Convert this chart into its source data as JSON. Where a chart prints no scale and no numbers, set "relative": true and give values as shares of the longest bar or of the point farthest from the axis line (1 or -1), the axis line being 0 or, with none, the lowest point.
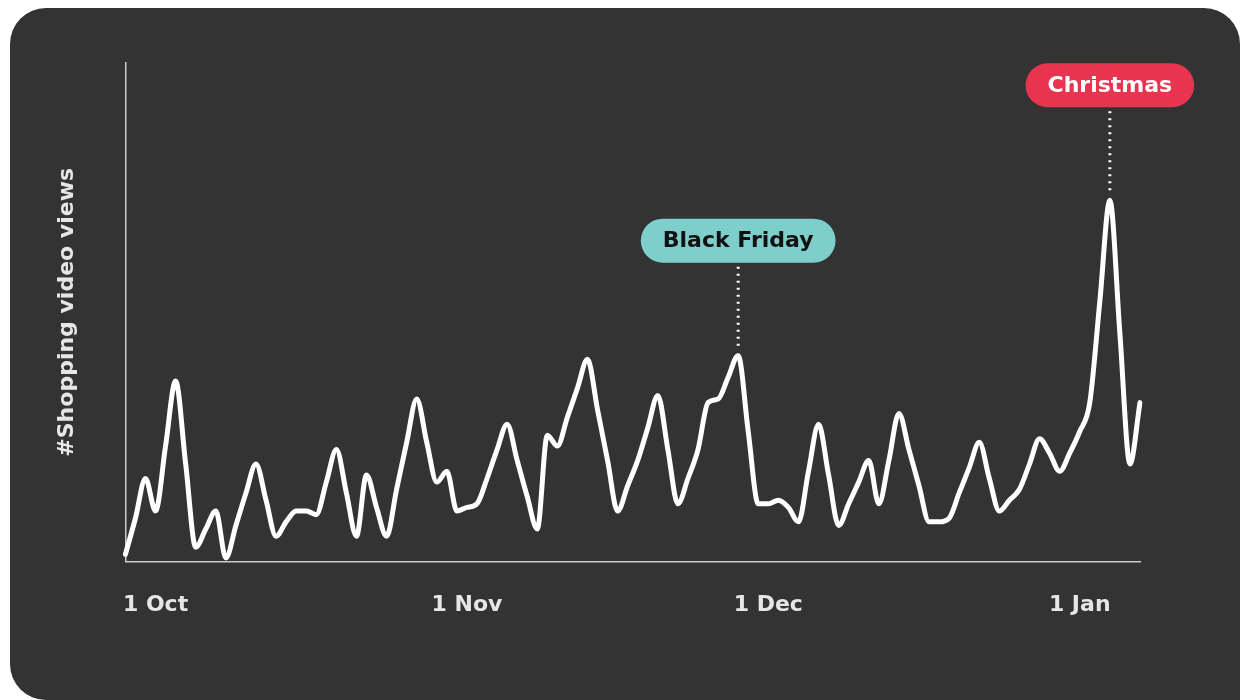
{
  "chart_data": {
    "type": "line",
    "relative": true,
    "ylabel": "#Shopping video views",
    "categories": [
      null,
      null,
      null,
      "1 Oct",
      null,
      null,
      null,
      null,
      null,
      null,
      null,
      null,
      null,
      null,
      null,
      null,
      null,
      null,
      null,
      null,
      null,
      null,
      null,
      null,
      null,
      null,
      null,
      null,
      null,
      null,
      null,
      null,
      null,
      null,
      "1 Nov",
      null,
      null,
      null,
      null,
      null,
      null,
      null,
      null,
      null,
      null,
      null,
      null,
      null,
      null,
      null,
      null,
      null,
      null,
      null,
      null,
      null,
      null,
      null,
      null,
      null,
      null,
      null,
      null,
      null,
      "1 Dec",
      null,
      null,
      null,
      null,
      null,
      null,
      null,
      null,
      null,
      null,
      null,
      null,
      null,
      null,
      null,
      null,
      null,
      null,
      null,
      null,
      null,
      null,
      null,
      null,
      null,
      null,
      null,
      null,
      null,
      null,
      "1 Jan",
      null,
      null,
      null,
      null,
      null,
      null
    ],
    "series": [
      {
        "color": "#ffffff",
        "values": [
          0.02,
          0.12,
          0.23,
          0.14,
          0.32,
          0.5,
          0.27,
          0.04,
          0.09,
          0.14,
          0.01,
          0.1,
          0.19,
          0.27,
          0.17,
          0.07,
          0.11,
          0.14,
          0.14,
          0.13,
          0.22,
          0.31,
          0.19,
          0.07,
          0.24,
          0.15,
          0.07,
          0.2,
          0.33,
          0.45,
          0.33,
          0.22,
          0.25,
          0.14,
          0.15,
          0.16,
          0.23,
          0.31,
          0.38,
          0.28,
          0.18,
          0.09,
          0.35,
          0.32,
          0.4,
          0.48,
          0.56,
          0.42,
          0.28,
          0.14,
          0.21,
          0.28,
          0.37,
          0.46,
          0.31,
          0.16,
          0.23,
          0.31,
          0.44,
          0.45,
          0.51,
          0.57,
          0.36,
          0.16,
          0.16,
          0.17,
          0.15,
          0.11,
          0.25,
          0.38,
          0.24,
          0.1,
          0.16,
          0.22,
          0.28,
          0.16,
          0.28,
          0.41,
          0.31,
          0.21,
          0.11,
          0.11,
          0.12,
          0.19,
          0.26,
          0.33,
          0.23,
          0.14,
          0.17,
          0.2,
          0.27,
          0.34,
          0.3,
          0.25,
          0.3,
          0.36,
          0.44,
          0.72,
          1.0,
          0.63,
          0.27,
          0.44
        ]
      }
    ],
    "annotations": [
      {
        "text": "Black Friday",
        "y": 0.57
      },
      {
        "text": "Christmas",
        "y": 1.0
      }
    ],
    "grid": false,
    "legend": false,
    "marker": "none"
  }
}
